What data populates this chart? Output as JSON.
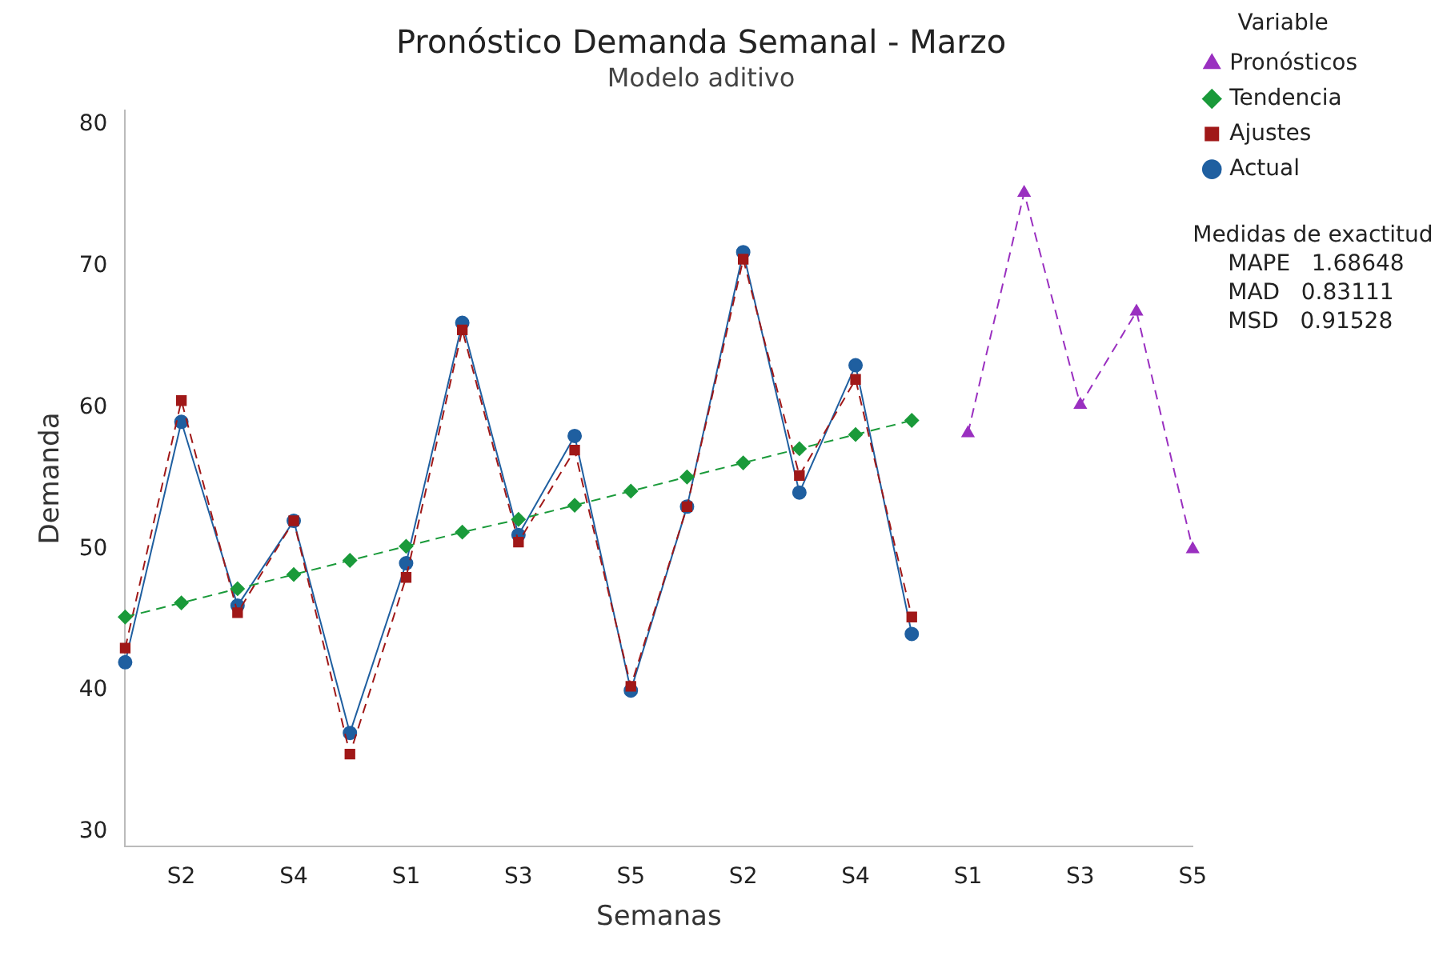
{
  "chart_data": {
    "type": "line",
    "title": "Pronóstico Demanda Semanal - Marzo",
    "subtitle": "Modelo aditivo",
    "xlabel": "Semanas",
    "ylabel": "Demanda",
    "legend_title": "Variable",
    "categories": [
      null,
      "S2",
      null,
      "S4",
      null,
      "S1",
      null,
      "S3",
      null,
      "S5",
      null,
      "S2",
      null,
      "S4",
      null,
      "S1",
      null,
      "S3",
      null,
      "S5"
    ],
    "series": [
      {
        "name": "Actual",
        "color": "#1f5fa0",
        "marker": "circle",
        "line_style": "solid",
        "values": [
          42,
          59,
          46,
          52,
          37,
          49,
          66,
          51,
          58,
          40,
          53,
          71,
          54,
          63,
          44,
          null,
          null,
          null,
          null,
          null
        ]
      },
      {
        "name": "Ajustes",
        "color": "#a01818",
        "marker": "square",
        "line_style": "dashed",
        "values": [
          43,
          60.5,
          45.5,
          52,
          35.5,
          48,
          65.5,
          50.5,
          57,
          40.3,
          53,
          70.5,
          55.2,
          62,
          45.2,
          null,
          null,
          null,
          null,
          null
        ]
      },
      {
        "name": "Tendencia",
        "color": "#1a9a3a",
        "marker": "diamond",
        "line_style": "dashed",
        "values": [
          45.2,
          46.2,
          47.2,
          48.2,
          49.2,
          50.2,
          51.2,
          52.1,
          53.1,
          54.1,
          55.1,
          56.1,
          57.1,
          58.1,
          59.1,
          null,
          null,
          null,
          null,
          null
        ]
      },
      {
        "name": "Pronósticos",
        "color": "#9a30c0",
        "marker": "triangle",
        "line_style": "dashed",
        "values": [
          null,
          null,
          null,
          null,
          null,
          null,
          null,
          null,
          null,
          null,
          null,
          null,
          null,
          null,
          null,
          58.2,
          75.2,
          60.2,
          66.8,
          50
        ]
      }
    ],
    "ylim": [
      29,
      81
    ],
    "yticks": [
      30,
      40,
      50,
      60,
      70,
      80
    ],
    "grid": false,
    "legend": "right",
    "annotations": [
      "Medidas de exactitud",
      "MAPE   1.68648",
      "MAD   0.83111",
      "MSD   0.91528"
    ]
  }
}
